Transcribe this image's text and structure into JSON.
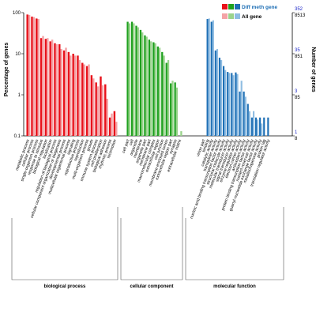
{
  "chart_data": {
    "type": "bar",
    "ylabel": "Percentage of genes",
    "ylabel_right": "Number of genes",
    "yscale": "log",
    "ylim": [
      0.1,
      100
    ],
    "yticks": [
      "0.1",
      "1",
      "10",
      "100"
    ],
    "right_ticks": [
      {
        "diff": "352",
        "all": "8513",
        "level": 100
      },
      {
        "diff": "35",
        "all": "851",
        "level": 10
      },
      {
        "diff": "3",
        "all": "85",
        "level": 1
      },
      {
        "diff": "1",
        "all": "8",
        "level": 0.1
      }
    ],
    "legend": [
      {
        "label": "Diff meth gene",
        "colors": [
          "#e8111a",
          "#1fa11f",
          "#1e6fb5"
        ]
      },
      {
        "label": "All gene",
        "colors": [
          "#f4a3a6",
          "#9ad38c",
          "#8fbde2"
        ]
      }
    ],
    "legend_placement": "top-right",
    "grid": false,
    "groups": [
      {
        "name": "biological process",
        "color_diff": "#e8111a",
        "color_all": "#f4a3a6",
        "categories": [
          {
            "name": "metabolic process",
            "diff": 90,
            "all": 88
          },
          {
            "name": "cellular process",
            "diff": 80,
            "all": 78
          },
          {
            "name": "single-organism process",
            "diff": 72,
            "all": 70
          },
          {
            "name": "response to stimulus",
            "diff": 24,
            "all": 27
          },
          {
            "name": "biological regulation",
            "diff": 23,
            "all": 24
          },
          {
            "name": "localization",
            "diff": 20,
            "all": 22
          },
          {
            "name": "regulation of biological process",
            "diff": 18,
            "all": 17
          },
          {
            "name": "cellular component organization or biogenesis",
            "diff": 17,
            "all": 13
          },
          {
            "name": "developmental process",
            "diff": 12,
            "all": 14
          },
          {
            "name": "multicellular organismal process",
            "diff": 11,
            "all": 9
          },
          {
            "name": "signaling",
            "diff": 10,
            "all": 9
          },
          {
            "name": "reproductive process",
            "diff": 9,
            "all": 7
          },
          {
            "name": "reproduction",
            "diff": 6,
            "all": 5.5
          },
          {
            "name": "multi-organism process",
            "diff": 5,
            "all": 5.5
          },
          {
            "name": "growth",
            "diff": 3,
            "all": 2.5
          },
          {
            "name": "immune system process",
            "diff": 2,
            "all": 1.6
          },
          {
            "name": "cell proliferation",
            "diff": 2.8,
            "all": 1.7
          },
          {
            "name": "biological adhesion",
            "diff": 1.8,
            "all": 0.8
          },
          {
            "name": "rhythmic process",
            "diff": 0.28,
            "all": 0.35
          },
          {
            "name": "locomotion",
            "diff": 0.4,
            "all": 0.22
          }
        ]
      },
      {
        "name": "cellular component",
        "color_diff": "#1fa11f",
        "color_all": "#9ad38c",
        "categories": [
          {
            "name": "cell part",
            "diff": 60,
            "all": 55
          },
          {
            "name": "cell",
            "diff": 60,
            "all": 55
          },
          {
            "name": "organelle",
            "diff": 48,
            "all": 44
          },
          {
            "name": "membrane",
            "diff": 38,
            "all": 33
          },
          {
            "name": "organelle part",
            "diff": 28,
            "all": 26
          },
          {
            "name": "membrane part",
            "diff": 22,
            "all": 20
          },
          {
            "name": "macromolecular complex",
            "diff": 19,
            "all": 18
          },
          {
            "name": "extracellular region",
            "diff": 15,
            "all": 14
          },
          {
            "name": "cell junction",
            "diff": 11,
            "all": 9
          },
          {
            "name": "membrane-enclosed lumen",
            "diff": 6,
            "all": 7
          },
          {
            "name": "extracellular region part",
            "diff": 1.9,
            "all": 2.2
          },
          {
            "name": "synapse",
            "diff": 2,
            "all": 1.5
          },
          {
            "name": "extracellular matrix",
            "diff": 0.09,
            "all": 0.13
          }
        ]
      },
      {
        "name": "molecular function",
        "color_diff": "#1e6fb5",
        "color_all": "#8fbde2",
        "categories": [
          {
            "name": "virion part",
            "diff": 0.09,
            "all": 0.09
          },
          {
            "name": "binding",
            "diff": 70,
            "all": 72
          },
          {
            "name": "catalytic activity",
            "diff": 60,
            "all": 65
          },
          {
            "name": "transporter activity",
            "diff": 12,
            "all": 13
          },
          {
            "name": "nucleic acid binding transcription factor activity",
            "diff": 8,
            "all": 7
          },
          {
            "name": "structural molecule activity",
            "diff": 5,
            "all": 4
          },
          {
            "name": "molecular transducer activity",
            "diff": 3.6,
            "all": 3.4
          },
          {
            "name": "signal transducer activity",
            "diff": 3.4,
            "all": 3
          },
          {
            "name": "enzyme regulator activity",
            "diff": 3.5,
            "all": 3.2
          },
          {
            "name": "electron carrier activity",
            "diff": 1.2,
            "all": 2.2
          },
          {
            "name": "antioxidant activity",
            "diff": 1.2,
            "all": 0.9
          },
          {
            "name": "protein binding transcription factor activity",
            "diff": 0.6,
            "all": 0.4
          },
          {
            "name": "nutrient reservoir activity",
            "diff": 0.28,
            "all": 0.4
          },
          {
            "name": "guanyl-nucleotide exchange factor activity",
            "diff": 0.28,
            "all": 0.25
          },
          {
            "name": "metallochaperone activity",
            "diff": 0.28,
            "all": 0.2
          },
          {
            "name": "protein tag",
            "diff": 0.28,
            "all": 0.1
          },
          {
            "name": "translation regulator activity",
            "diff": 0.28,
            "all": 0.1
          }
        ]
      }
    ]
  }
}
